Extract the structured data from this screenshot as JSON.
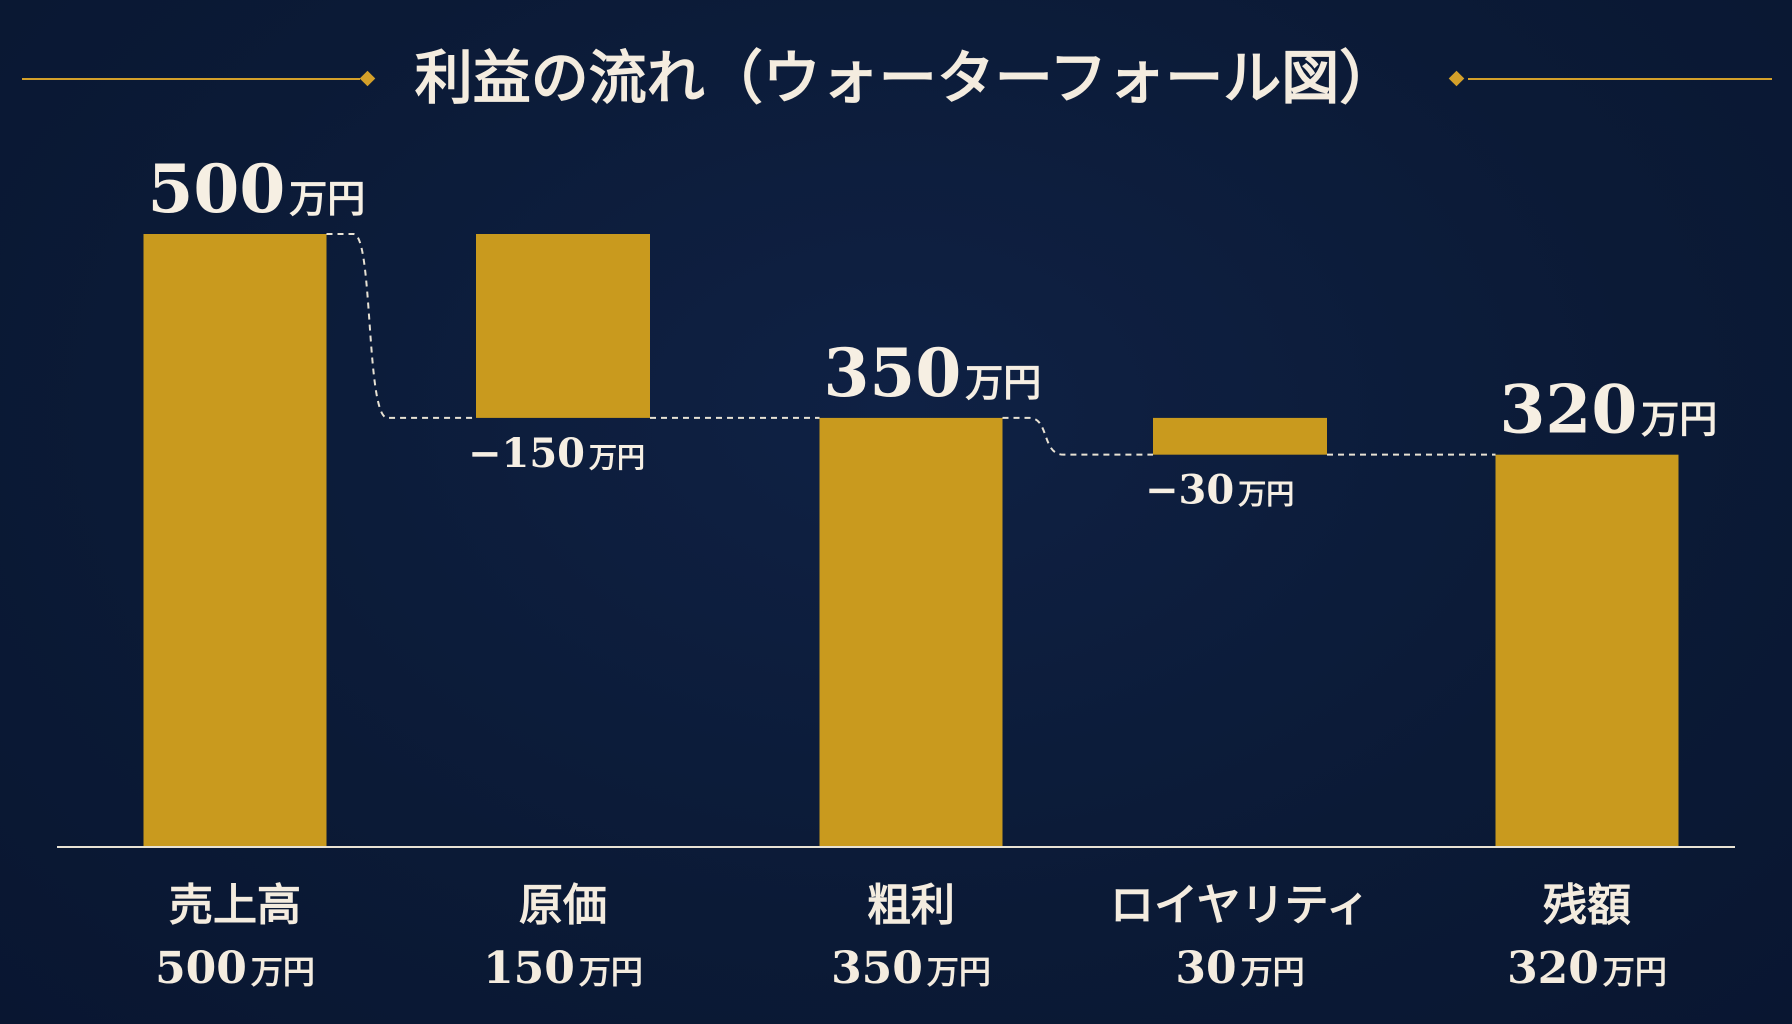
{
  "colors": {
    "background": "#0b1b38",
    "bar": "#c99a1e",
    "accent_line": "#d4a02a",
    "text": "#f4ecdf",
    "baseline": "#e8e2d4",
    "connector": "#e8e2d4"
  },
  "chart_data": {
    "type": "waterfall",
    "title": "利益の流れ（ウォーターフォール図）",
    "unit": "万円",
    "ylim": [
      0,
      500
    ],
    "grid": false,
    "categories": [
      "売上高",
      "原価",
      "粗利",
      "ロイヤリティ",
      "残額"
    ],
    "bars": [
      {
        "category": "売上高",
        "kind": "total",
        "start": 0,
        "end": 500,
        "value": 500,
        "bar_label": "500",
        "category_value": "500"
      },
      {
        "category": "原価",
        "kind": "decrease",
        "start": 500,
        "end": 350,
        "value": -150,
        "bar_label": "−150",
        "category_value": "150"
      },
      {
        "category": "粗利",
        "kind": "total",
        "start": 0,
        "end": 350,
        "value": 350,
        "bar_label": "350",
        "category_value": "350"
      },
      {
        "category": "ロイヤリティ",
        "kind": "decrease",
        "start": 350,
        "end": 320,
        "value": -30,
        "bar_label": "−30",
        "category_value": "30"
      },
      {
        "category": "残額",
        "kind": "total",
        "start": 0,
        "end": 320,
        "value": 320,
        "bar_label": "320",
        "category_value": "320"
      }
    ]
  }
}
